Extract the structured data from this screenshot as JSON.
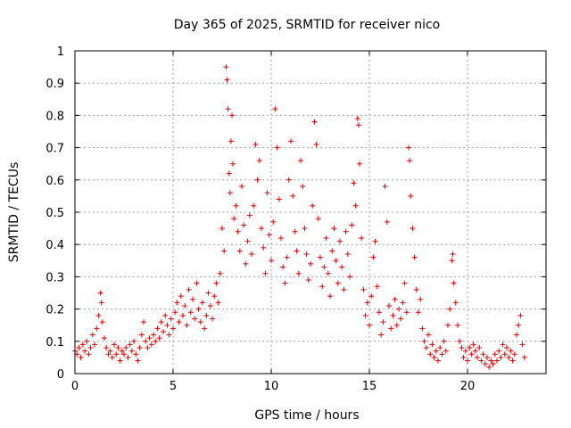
{
  "chart_data": {
    "type": "scatter",
    "title": "Day 365 of 2025, SRMTID for receiver nico",
    "xlabel": "GPS time / hours",
    "ylabel": "SRMTID / TECUs",
    "xlim": [
      0,
      24
    ],
    "ylim": [
      0,
      1
    ],
    "xticks": [
      "0",
      "5",
      "10",
      "15",
      "20"
    ],
    "yticks": [
      "0",
      "0.1",
      "0.2",
      "0.3",
      "0.4",
      "0.5",
      "0.6",
      "0.7",
      "0.8",
      "0.9",
      "1"
    ],
    "grid": true,
    "marker": "plus",
    "color": "#e00000",
    "series": [
      {
        "name": "SRMTID",
        "points": [
          [
            0.0,
            0.07
          ],
          [
            0.1,
            0.06
          ],
          [
            0.2,
            0.08
          ],
          [
            0.3,
            0.05
          ],
          [
            0.4,
            0.09
          ],
          [
            0.5,
            0.07
          ],
          [
            0.6,
            0.1
          ],
          [
            0.7,
            0.06
          ],
          [
            0.8,
            0.08
          ],
          [
            0.9,
            0.12
          ],
          [
            1.0,
            0.09
          ],
          [
            1.1,
            0.14
          ],
          [
            1.2,
            0.18
          ],
          [
            1.3,
            0.25
          ],
          [
            1.35,
            0.22
          ],
          [
            1.4,
            0.16
          ],
          [
            1.5,
            0.11
          ],
          [
            1.6,
            0.08
          ],
          [
            1.7,
            0.06
          ],
          [
            1.8,
            0.07
          ],
          [
            1.9,
            0.05
          ],
          [
            2.0,
            0.09
          ],
          [
            2.1,
            0.06
          ],
          [
            2.2,
            0.08
          ],
          [
            2.3,
            0.04
          ],
          [
            2.4,
            0.07
          ],
          [
            2.5,
            0.06
          ],
          [
            2.6,
            0.08
          ],
          [
            2.7,
            0.05
          ],
          [
            2.8,
            0.09
          ],
          [
            2.9,
            0.07
          ],
          [
            3.0,
            0.1
          ],
          [
            3.1,
            0.06
          ],
          [
            3.2,
            0.04
          ],
          [
            3.3,
            0.08
          ],
          [
            3.4,
            0.12
          ],
          [
            3.5,
            0.16
          ],
          [
            3.6,
            0.1
          ],
          [
            3.7,
            0.08
          ],
          [
            3.8,
            0.11
          ],
          [
            3.9,
            0.09
          ],
          [
            4.0,
            0.12
          ],
          [
            4.1,
            0.1
          ],
          [
            4.2,
            0.14
          ],
          [
            4.3,
            0.11
          ],
          [
            4.4,
            0.16
          ],
          [
            4.5,
            0.13
          ],
          [
            4.6,
            0.18
          ],
          [
            4.7,
            0.15
          ],
          [
            4.8,
            0.12
          ],
          [
            4.9,
            0.17
          ],
          [
            5.0,
            0.14
          ],
          [
            5.1,
            0.19
          ],
          [
            5.2,
            0.22
          ],
          [
            5.3,
            0.16
          ],
          [
            5.4,
            0.24
          ],
          [
            5.5,
            0.18
          ],
          [
            5.6,
            0.21
          ],
          [
            5.7,
            0.15
          ],
          [
            5.8,
            0.26
          ],
          [
            5.9,
            0.19
          ],
          [
            6.0,
            0.23
          ],
          [
            6.1,
            0.17
          ],
          [
            6.2,
            0.28
          ],
          [
            6.3,
            0.2
          ],
          [
            6.4,
            0.16
          ],
          [
            6.5,
            0.22
          ],
          [
            6.6,
            0.14
          ],
          [
            6.7,
            0.18
          ],
          [
            6.8,
            0.25
          ],
          [
            6.9,
            0.21
          ],
          [
            7.0,
            0.17
          ],
          [
            7.1,
            0.24
          ],
          [
            7.2,
            0.28
          ],
          [
            7.3,
            0.22
          ],
          [
            7.4,
            0.31
          ],
          [
            7.5,
            0.45
          ],
          [
            7.6,
            0.38
          ],
          [
            7.7,
            0.95
          ],
          [
            7.75,
            0.91
          ],
          [
            7.8,
            0.82
          ],
          [
            7.85,
            0.62
          ],
          [
            7.9,
            0.56
          ],
          [
            7.95,
            0.72
          ],
          [
            8.0,
            0.8
          ],
          [
            8.05,
            0.65
          ],
          [
            8.1,
            0.48
          ],
          [
            8.2,
            0.52
          ],
          [
            8.3,
            0.44
          ],
          [
            8.4,
            0.38
          ],
          [
            8.5,
            0.58
          ],
          [
            8.6,
            0.46
          ],
          [
            8.7,
            0.34
          ],
          [
            8.8,
            0.41
          ],
          [
            8.9,
            0.49
          ],
          [
            9.0,
            0.37
          ],
          [
            9.1,
            0.52
          ],
          [
            9.2,
            0.71
          ],
          [
            9.3,
            0.6
          ],
          [
            9.4,
            0.66
          ],
          [
            9.5,
            0.45
          ],
          [
            9.6,
            0.39
          ],
          [
            9.7,
            0.31
          ],
          [
            9.8,
            0.56
          ],
          [
            9.9,
            0.43
          ],
          [
            10.0,
            0.35
          ],
          [
            10.1,
            0.47
          ],
          [
            10.2,
            0.82
          ],
          [
            10.3,
            0.7
          ],
          [
            10.4,
            0.54
          ],
          [
            10.5,
            0.42
          ],
          [
            10.6,
            0.33
          ],
          [
            10.7,
            0.28
          ],
          [
            10.8,
            0.36
          ],
          [
            10.9,
            0.6
          ],
          [
            11.0,
            0.72
          ],
          [
            11.1,
            0.55
          ],
          [
            11.2,
            0.44
          ],
          [
            11.3,
            0.38
          ],
          [
            11.4,
            0.31
          ],
          [
            11.5,
            0.66
          ],
          [
            11.6,
            0.58
          ],
          [
            11.7,
            0.45
          ],
          [
            11.8,
            0.37
          ],
          [
            11.9,
            0.29
          ],
          [
            12.0,
            0.34
          ],
          [
            12.1,
            0.52
          ],
          [
            12.2,
            0.78
          ],
          [
            12.3,
            0.71
          ],
          [
            12.4,
            0.48
          ],
          [
            12.5,
            0.36
          ],
          [
            12.6,
            0.27
          ],
          [
            12.7,
            0.33
          ],
          [
            12.8,
            0.42
          ],
          [
            12.9,
            0.31
          ],
          [
            13.0,
            0.24
          ],
          [
            13.1,
            0.38
          ],
          [
            13.2,
            0.45
          ],
          [
            13.3,
            0.35
          ],
          [
            13.4,
            0.28
          ],
          [
            13.5,
            0.41
          ],
          [
            13.6,
            0.33
          ],
          [
            13.7,
            0.26
          ],
          [
            13.8,
            0.44
          ],
          [
            13.9,
            0.37
          ],
          [
            14.0,
            0.3
          ],
          [
            14.1,
            0.46
          ],
          [
            14.2,
            0.59
          ],
          [
            14.3,
            0.52
          ],
          [
            14.4,
            0.79
          ],
          [
            14.45,
            0.77
          ],
          [
            14.5,
            0.65
          ],
          [
            14.6,
            0.42
          ],
          [
            14.7,
            0.26
          ],
          [
            14.8,
            0.18
          ],
          [
            14.9,
            0.22
          ],
          [
            15.0,
            0.15
          ],
          [
            15.1,
            0.24
          ],
          [
            15.2,
            0.36
          ],
          [
            15.3,
            0.41
          ],
          [
            15.4,
            0.27
          ],
          [
            15.5,
            0.19
          ],
          [
            15.6,
            0.12
          ],
          [
            15.7,
            0.16
          ],
          [
            15.8,
            0.58
          ],
          [
            15.9,
            0.47
          ],
          [
            16.0,
            0.21
          ],
          [
            16.1,
            0.14
          ],
          [
            16.2,
            0.18
          ],
          [
            16.3,
            0.23
          ],
          [
            16.4,
            0.15
          ],
          [
            16.5,
            0.2
          ],
          [
            16.6,
            0.17
          ],
          [
            16.7,
            0.22
          ],
          [
            16.8,
            0.28
          ],
          [
            16.9,
            0.19
          ],
          [
            17.0,
            0.7
          ],
          [
            17.05,
            0.66
          ],
          [
            17.1,
            0.55
          ],
          [
            17.2,
            0.45
          ],
          [
            17.3,
            0.36
          ],
          [
            17.4,
            0.26
          ],
          [
            17.5,
            0.19
          ],
          [
            17.6,
            0.23
          ],
          [
            17.7,
            0.14
          ],
          [
            17.8,
            0.1
          ],
          [
            17.9,
            0.08
          ],
          [
            18.0,
            0.12
          ],
          [
            18.1,
            0.06
          ],
          [
            18.2,
            0.09
          ],
          [
            18.3,
            0.05
          ],
          [
            18.4,
            0.07
          ],
          [
            18.5,
            0.04
          ],
          [
            18.6,
            0.08
          ],
          [
            18.7,
            0.06
          ],
          [
            18.8,
            0.1
          ],
          [
            18.9,
            0.07
          ],
          [
            19.0,
            0.15
          ],
          [
            19.1,
            0.2
          ],
          [
            19.2,
            0.35
          ],
          [
            19.25,
            0.37
          ],
          [
            19.3,
            0.28
          ],
          [
            19.4,
            0.22
          ],
          [
            19.5,
            0.15
          ],
          [
            19.6,
            0.1
          ],
          [
            19.7,
            0.08
          ],
          [
            19.8,
            0.05
          ],
          [
            19.9,
            0.07
          ],
          [
            20.0,
            0.04
          ],
          [
            20.1,
            0.08
          ],
          [
            20.2,
            0.06
          ],
          [
            20.3,
            0.09
          ],
          [
            20.4,
            0.07
          ],
          [
            20.5,
            0.05
          ],
          [
            20.6,
            0.08
          ],
          [
            20.7,
            0.04
          ],
          [
            20.8,
            0.06
          ],
          [
            20.9,
            0.03
          ],
          [
            21.0,
            0.05
          ],
          [
            21.1,
            0.02
          ],
          [
            21.2,
            0.04
          ],
          [
            21.3,
            0.03
          ],
          [
            21.4,
            0.06
          ],
          [
            21.5,
            0.04
          ],
          [
            21.6,
            0.07
          ],
          [
            21.7,
            0.05
          ],
          [
            21.8,
            0.09
          ],
          [
            21.9,
            0.06
          ],
          [
            22.0,
            0.08
          ],
          [
            22.1,
            0.05
          ],
          [
            22.2,
            0.07
          ],
          [
            22.3,
            0.04
          ],
          [
            22.4,
            0.06
          ],
          [
            22.5,
            0.12
          ],
          [
            22.6,
            0.15
          ],
          [
            22.7,
            0.18
          ],
          [
            22.8,
            0.09
          ],
          [
            22.9,
            0.05
          ]
        ]
      }
    ]
  }
}
